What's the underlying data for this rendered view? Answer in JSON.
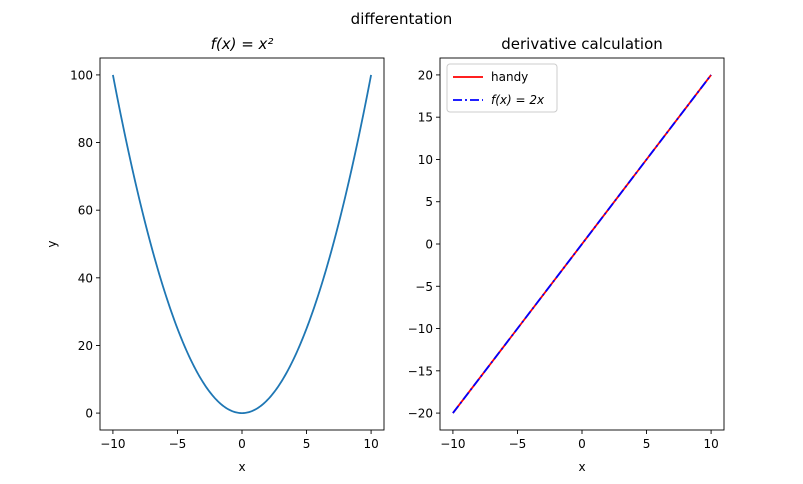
{
  "figure": {
    "suptitle": "differentation"
  },
  "chart_data": [
    {
      "type": "line",
      "title": "f(x) = x²",
      "xlabel": "x",
      "ylabel": "y",
      "xlim": [
        -11,
        11
      ],
      "ylim": [
        -5,
        105
      ],
      "xticks": [
        -10,
        -5,
        0,
        5,
        10
      ],
      "xtick_labels": [
        "−10",
        "−5",
        "0",
        "5",
        "10"
      ],
      "yticks": [
        0,
        20,
        40,
        60,
        80,
        100
      ],
      "ytick_labels": [
        "0",
        "20",
        "40",
        "60",
        "80",
        "100"
      ],
      "grid": false,
      "series": [
        {
          "function": "x^2",
          "x_range": [
            -10,
            10
          ],
          "color": "#1f77b4",
          "style": "solid"
        }
      ]
    },
    {
      "type": "line",
      "title": "derivative calculation",
      "xlabel": "x",
      "ylabel": "",
      "xlim": [
        -11,
        11
      ],
      "ylim": [
        -22,
        22
      ],
      "xticks": [
        -10,
        -5,
        0,
        5,
        10
      ],
      "xtick_labels": [
        "−10",
        "−5",
        "0",
        "5",
        "10"
      ],
      "yticks": [
        -20,
        -15,
        -10,
        -5,
        0,
        5,
        10,
        15,
        20
      ],
      "ytick_labels": [
        "−20",
        "−15",
        "−10",
        "−5",
        "0",
        "5",
        "10",
        "15",
        "20"
      ],
      "grid": false,
      "legend": "upper-left",
      "series": [
        {
          "name": "handy",
          "function": "2x",
          "x": [
            -10,
            10
          ],
          "y": [
            -20,
            20
          ],
          "color": "#ff0000",
          "style": "solid"
        },
        {
          "name": "f(x) = 2x",
          "function": "2x",
          "x": [
            -10,
            10
          ],
          "y": [
            -20,
            20
          ],
          "color": "#0000ff",
          "style": "dashdot"
        }
      ]
    }
  ]
}
